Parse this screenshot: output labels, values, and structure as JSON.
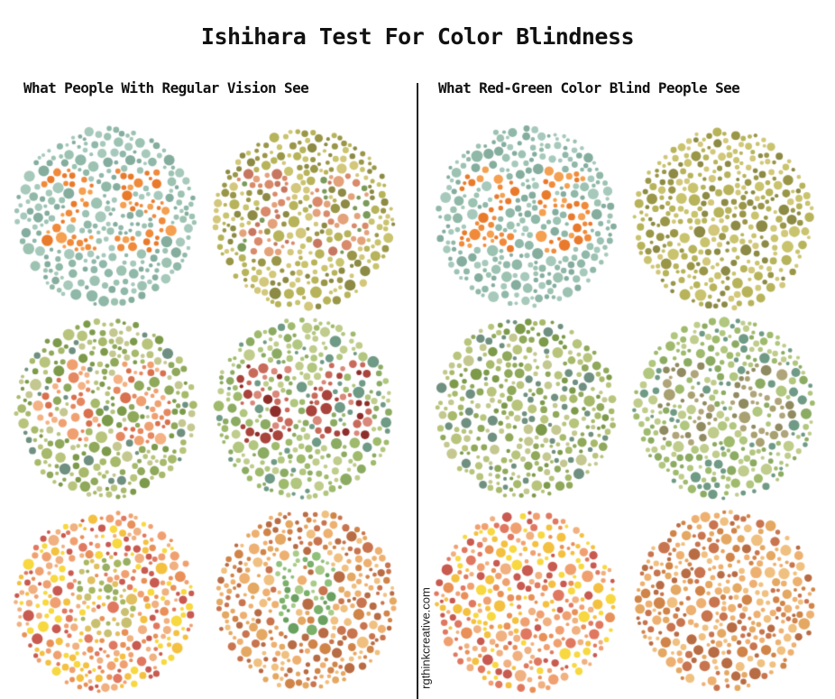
{
  "title": "Ishihara Test For Color Blindness",
  "left_heading": "What People With Regular Vision See",
  "right_heading": "What Red-Green Color Blind People See",
  "watermark": "rgthinkcreative.com",
  "plates": {
    "regular": [
      {
        "numeral": "25",
        "scheme": "teal-orange"
      },
      {
        "numeral": "29",
        "scheme": "olive-red"
      },
      {
        "numeral": "45",
        "scheme": "green-orange"
      },
      {
        "numeral": "56",
        "scheme": "green-red"
      },
      {
        "numeral": "5",
        "scheme": "orange-green-faint"
      },
      {
        "numeral": "8",
        "scheme": "orange-green"
      }
    ],
    "color_blind": [
      {
        "numeral": "25",
        "scheme": "teal-orange"
      },
      {
        "numeral": "",
        "scheme": "olive-red"
      },
      {
        "numeral": "",
        "scheme": "green-orange"
      },
      {
        "numeral": "56",
        "scheme": "green-red-faint"
      },
      {
        "numeral": "",
        "scheme": "orange-green-faint"
      },
      {
        "numeral": "",
        "scheme": "orange-green"
      }
    ]
  }
}
